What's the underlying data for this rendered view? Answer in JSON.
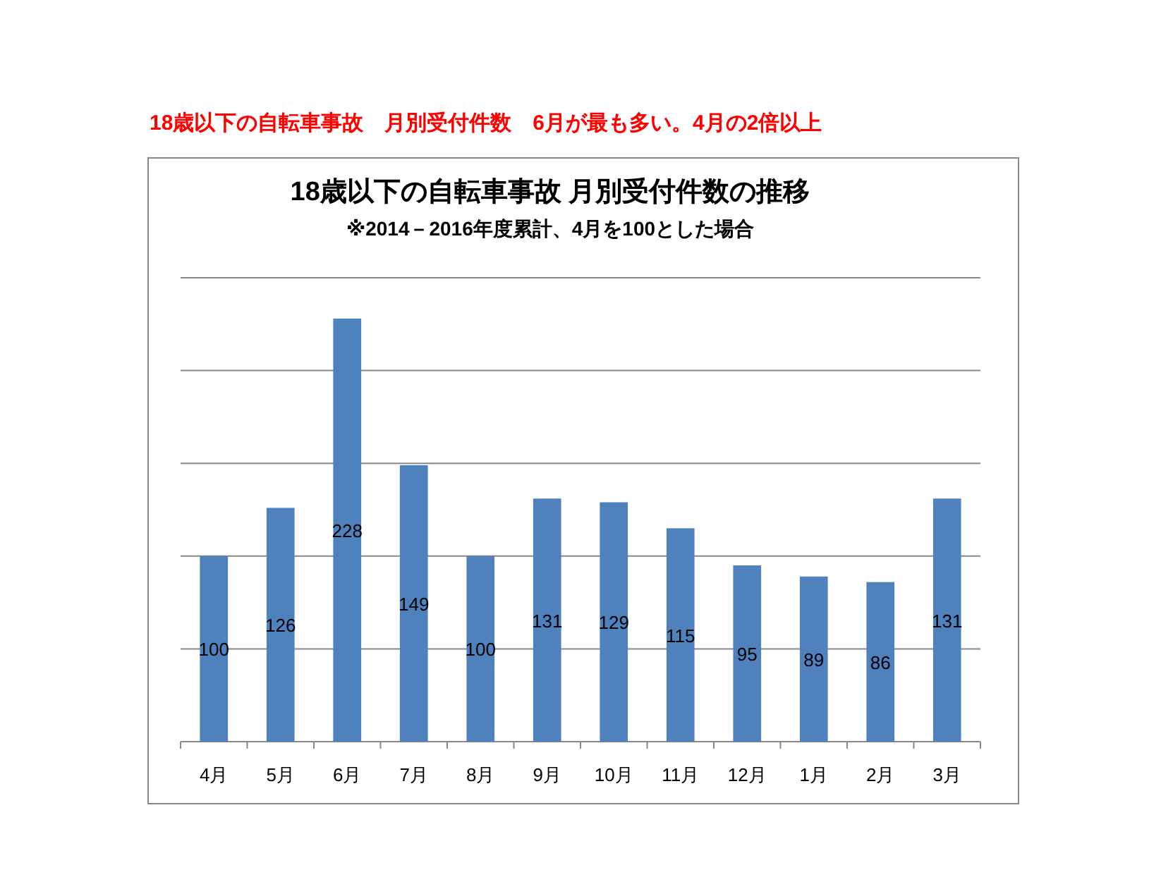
{
  "chart_data": {
    "type": "bar",
    "title": "18歳以下の自転車事故 月別受付件数の推移",
    "subtitle": "※2014－2016年度累計、4月を100とした場合",
    "annotations": [
      "18歳以下の自転車事故　月別受付件数　6月が最も多い。4月の2倍以上"
    ],
    "categories": [
      "4月",
      "5月",
      "6月",
      "7月",
      "8月",
      "9月",
      "10月",
      "11月",
      "12月",
      "1月",
      "2月",
      "3月"
    ],
    "values": [
      100,
      126,
      228,
      149,
      100,
      131,
      129,
      115,
      95,
      89,
      86,
      131
    ],
    "color": "#4f81bd",
    "ylim": [
      0,
      250
    ],
    "yticks": [
      {
        "value": 0,
        "label": null
      },
      {
        "value": 50,
        "label": null
      },
      {
        "value": 100,
        "label": null
      },
      {
        "value": 150,
        "label": null
      },
      {
        "value": 200,
        "label": null
      },
      {
        "value": 250,
        "label": null
      }
    ],
    "grid": "y",
    "tick_labels": "x",
    "data_labels": true
  }
}
